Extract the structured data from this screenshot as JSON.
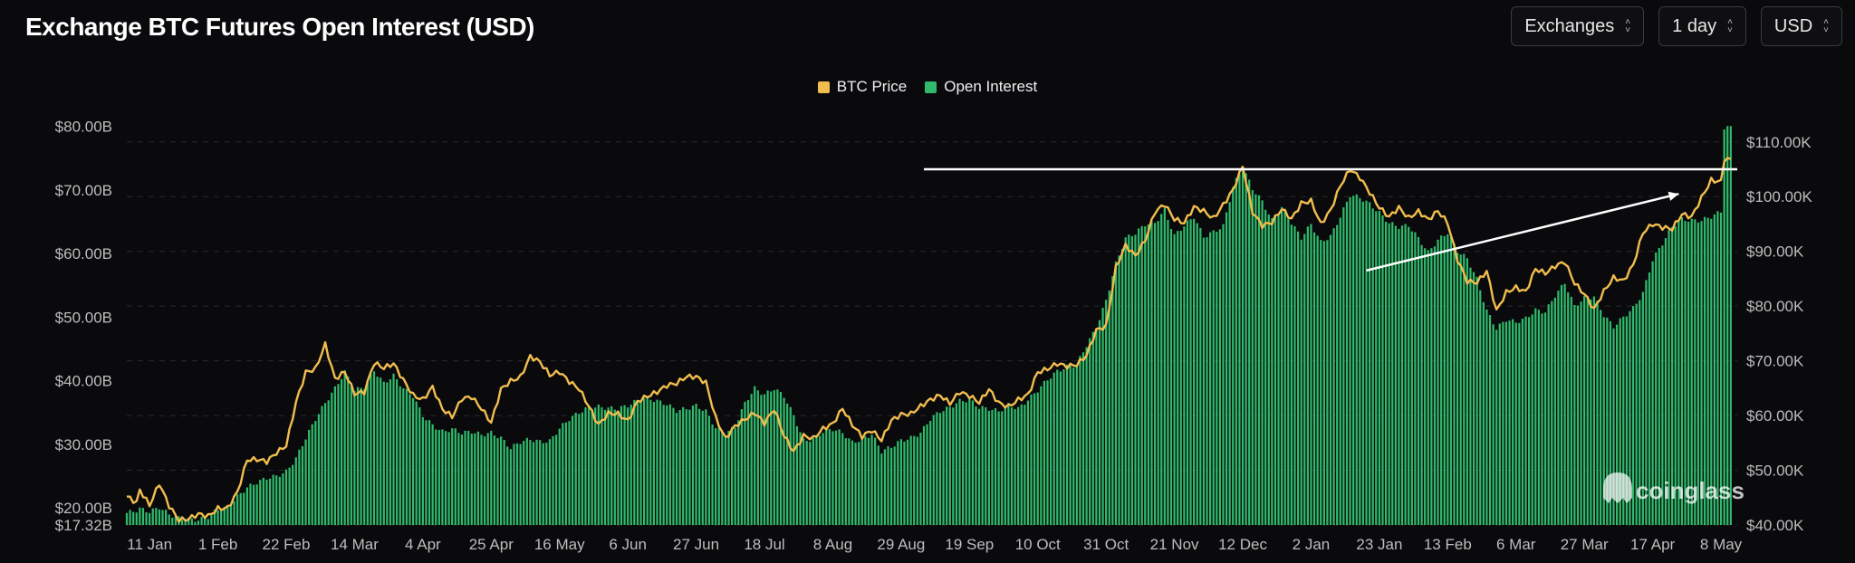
{
  "header": {
    "title": "Exchange BTC Futures Open Interest (USD)",
    "controls": [
      {
        "label": "Exchanges"
      },
      {
        "label": "1 day"
      },
      {
        "label": "USD"
      }
    ]
  },
  "watermark": "coinglass",
  "colors": {
    "background": "#0a0a0d",
    "btc_price": "#f2bd4e",
    "open_interest": "#2fbb6b",
    "annotation": "#ffffff"
  },
  "chart_data": {
    "type": "bar",
    "title": "Exchange BTC Futures Open Interest (USD)",
    "legend": {
      "placement": "top-center",
      "entries": [
        "BTC Price",
        "Open Interest"
      ]
    },
    "grid": true,
    "x_ticks": [
      "11 Jan",
      "1 Feb",
      "22 Feb",
      "14 Mar",
      "4 Apr",
      "25 Apr",
      "16 May",
      "6 Jun",
      "27 Jun",
      "18 Jul",
      "8 Aug",
      "29 Aug",
      "19 Sep",
      "10 Oct",
      "31 Oct",
      "21 Nov",
      "12 Dec",
      "2 Jan",
      "23 Jan",
      "13 Feb",
      "6 Mar",
      "27 Mar",
      "17 Apr",
      "8 May"
    ],
    "left_axis": {
      "ticks": [
        "$80.00B",
        "$70.00B",
        "$60.00B",
        "$50.00B",
        "$40.00B",
        "$30.00B",
        "$20.00B",
        "$17.32B"
      ],
      "tick_values": [
        80,
        70,
        60,
        50,
        40,
        30,
        20,
        17.32
      ],
      "range": [
        17.32,
        80
      ]
    },
    "right_axis": {
      "ticks": [
        "$110.00K",
        "$100.00K",
        "$90.00K",
        "$80.00K",
        "$70.00K",
        "$60.00K",
        "$50.00K",
        "$40.00K"
      ],
      "tick_values": [
        110,
        100,
        90,
        80,
        70,
        60,
        50,
        40
      ],
      "range": [
        40,
        110
      ]
    },
    "series": [
      {
        "name": "Open Interest",
        "kind": "bar",
        "axis": "left",
        "unit": "USD billions",
        "keypoints_week": [
          0,
          3,
          4,
          7,
          10,
          13,
          16,
          19,
          22,
          25,
          28,
          31,
          34,
          37,
          40,
          43,
          46,
          49,
          52,
          55,
          58,
          61,
          64,
          67,
          70,
          73,
          76,
          79,
          82,
          85,
          88,
          91,
          94,
          97,
          100,
          103,
          106,
          109,
          112,
          115,
          118,
          121,
          124,
          127,
          130,
          133,
          136,
          139,
          142,
          145,
          148,
          151,
          154,
          157,
          160,
          163,
          166,
          169,
          172,
          175,
          178,
          181,
          184,
          187,
          190,
          193,
          196,
          199,
          202,
          205,
          208,
          211,
          214,
          217,
          220,
          223,
          226,
          229,
          232,
          235,
          238,
          241,
          244,
          247,
          250,
          253,
          256,
          259,
          262,
          265,
          268,
          271,
          274,
          277,
          280,
          283,
          286,
          289,
          292,
          295,
          298,
          301,
          304,
          307,
          310,
          313,
          316,
          319,
          322,
          325,
          328,
          331,
          334,
          337,
          340,
          343,
          346,
          349,
          352,
          355,
          358,
          361,
          364,
          367,
          370,
          373,
          376,
          379,
          382,
          385,
          388,
          391,
          394,
          397,
          400,
          403,
          406,
          409,
          412,
          415,
          418,
          421,
          424,
          427,
          430,
          433,
          436,
          439,
          442,
          445,
          448,
          451,
          454,
          457,
          460,
          463,
          466,
          469,
          472,
          475,
          478,
          481,
          484,
          487,
          490
        ],
        "keypoints_value": [
          19.2,
          19.6,
          19.9,
          19.4,
          20.1,
          19.0,
          18.4,
          18.2,
          18.1,
          18.6,
          19.8,
          20.0,
          21.8,
          23.2,
          24.0,
          24.7,
          25.0,
          25.7,
          27.8,
          31.0,
          34.0,
          36.5,
          38.8,
          41.4,
          38.5,
          39.0,
          41.6,
          39.6,
          40.8,
          38.8,
          37.6,
          34.5,
          33.0,
          32.0,
          32.4,
          31.8,
          32.0,
          31.5,
          31.8,
          31.0,
          29.4,
          30.4,
          30.8,
          30.4,
          30.5,
          32.5,
          34.0,
          35.0,
          35.8,
          35.9,
          35.7,
          35.6,
          36.1,
          36.9,
          37.3,
          36.8,
          36.3,
          35.3,
          35.6,
          36.1,
          35.2,
          32.6,
          31.6,
          32.8,
          36.5,
          38.8,
          37.8,
          38.8,
          37.6,
          34.5,
          30.6,
          30.8,
          32.0,
          32.4,
          31.8,
          30.3,
          30.8,
          31.6,
          28.9,
          29.6,
          30.6,
          31.0,
          31.8,
          34.0,
          35.2,
          35.8,
          36.8,
          37.0,
          35.8,
          35.6,
          35.2,
          36.2,
          35.6,
          37.0,
          38.5,
          40.2,
          41.5,
          42.2,
          42.5,
          45.6,
          48.3,
          52.6,
          58.4,
          62.4,
          63.2,
          64.6,
          64.8,
          66.8,
          62.8,
          64.4,
          65.8,
          62.6,
          63.4,
          64.3,
          70.5,
          73.6,
          70.2,
          68.2,
          65.2,
          67.2,
          64.8,
          62.5,
          64.6,
          61.8,
          62.7,
          65.8,
          69.2,
          68.8,
          67.8,
          66.4,
          64.8,
          64.2,
          64.4,
          62.4,
          60.2,
          62.1,
          63.3,
          60.4,
          59.2,
          56.0,
          51.0,
          48.2,
          49.6,
          49.2,
          49.8,
          51.1,
          50.8,
          53.4,
          55.4,
          51.7,
          53.0,
          53.2,
          50.3,
          48.5,
          50.0,
          51.4,
          53.8,
          59.0,
          61.6,
          64.2,
          65.4,
          65.2,
          65.2,
          65.8,
          66.6,
          66.1,
          71.5,
          75.5,
          79.8
        ],
        "note": "Daily bars; weekly keypoints estimated from the chart (day index = days since 4 Jan); bars interpolated between keypoints"
      },
      {
        "name": "BTC Price",
        "kind": "line",
        "axis": "right",
        "unit": "USD thousands",
        "keypoints_week": [
          0,
          3,
          4,
          7,
          10,
          13,
          16,
          19,
          22,
          25,
          28,
          31,
          34,
          37,
          40,
          43,
          46,
          49,
          52,
          55,
          58,
          61,
          64,
          67,
          70,
          73,
          76,
          79,
          82,
          85,
          88,
          91,
          94,
          97,
          100,
          103,
          106,
          109,
          112,
          115,
          118,
          121,
          124,
          127,
          130,
          133,
          136,
          139,
          142,
          145,
          148,
          151,
          154,
          157,
          160,
          163,
          166,
          169,
          172,
          175,
          178,
          181,
          184,
          187,
          190,
          193,
          196,
          199,
          202,
          205,
          208,
          211,
          214,
          217,
          220,
          223,
          226,
          229,
          232,
          235,
          238,
          241,
          244,
          247,
          250,
          253,
          256,
          259,
          262,
          265,
          268,
          271,
          274,
          277,
          280,
          283,
          286,
          289,
          292,
          295,
          298,
          301,
          304,
          307,
          310,
          313,
          316,
          319,
          322,
          325,
          328,
          331,
          334,
          337,
          340,
          343,
          346,
          349,
          352,
          355,
          358,
          361,
          364,
          367,
          370,
          373,
          376,
          379,
          382,
          385,
          388,
          391,
          394,
          397,
          400,
          403,
          406,
          409,
          412,
          415,
          418,
          421,
          424,
          427,
          430,
          433,
          436,
          439,
          442,
          445,
          448,
          451,
          454,
          457,
          460,
          463,
          466,
          469,
          472,
          475,
          478,
          481,
          484,
          487,
          490
        ],
        "keypoints_value": [
          45.2,
          44.1,
          46.4,
          43.6,
          47.6,
          43.5,
          40.9,
          41.1,
          42.0,
          41.6,
          43.0,
          43.1,
          46.0,
          51.9,
          52.0,
          51.6,
          53.2,
          54.5,
          62.4,
          67.9,
          68.5,
          73.0,
          66.7,
          68.0,
          64.0,
          64.3,
          69.6,
          68.7,
          69.5,
          66.5,
          63.7,
          62.9,
          65.2,
          61.2,
          59.8,
          63.1,
          63.4,
          61.3,
          58.7,
          64.8,
          66.3,
          67.0,
          70.8,
          69.8,
          67.4,
          68.0,
          66.2,
          64.9,
          61.7,
          58.3,
          60.4,
          60.3,
          59.0,
          62.6,
          63.5,
          64.3,
          65.5,
          65.9,
          67.1,
          67.1,
          66.0,
          59.6,
          55.8,
          58.1,
          59.3,
          60.5,
          58.6,
          61.2,
          56.3,
          53.4,
          56.3,
          55.8,
          57.6,
          58.5,
          61.3,
          58.3,
          56.2,
          57.3,
          55.5,
          59.1,
          60.2,
          60.3,
          61.7,
          62.9,
          63.7,
          62.2,
          64.3,
          63.6,
          62.4,
          64.8,
          62.3,
          61.6,
          62.9,
          63.8,
          67.9,
          68.5,
          69.5,
          69.0,
          69.3,
          71.0,
          75.6,
          76.3,
          87.0,
          91.1,
          89.2,
          92.0,
          97.2,
          98.6,
          95.9,
          95.2,
          98.1,
          97.4,
          96.0,
          98.5,
          101.2,
          105.6,
          97.2,
          94.7,
          95.3,
          97.8,
          95.9,
          98.8,
          99.2,
          95.0,
          97.5,
          102.0,
          105.0,
          103.5,
          100.8,
          98.0,
          96.3,
          98.0,
          96.1,
          97.3,
          95.8,
          97.4,
          95.2,
          88.5,
          84.5,
          84.3,
          86.4,
          79.1,
          82.5,
          83.4,
          82.6,
          86.8,
          86.0,
          87.3,
          88.1,
          84.2,
          82.2,
          79.4,
          82.7,
          85.2,
          84.6,
          87.5,
          93.4,
          95.0,
          94.4,
          94.1,
          96.8,
          96.3,
          99.8,
          103.0,
          102.7,
          103.6,
          106.8
        ]
      }
    ],
    "annotations": [
      {
        "type": "horizontal-line",
        "label": "",
        "value_right_axis": 105,
        "from_day": 245,
        "to_day": 495
      },
      {
        "type": "arrow",
        "label": "",
        "from": [
          381,
          86.5
        ],
        "to": [
          477,
          100.5
        ]
      }
    ]
  }
}
